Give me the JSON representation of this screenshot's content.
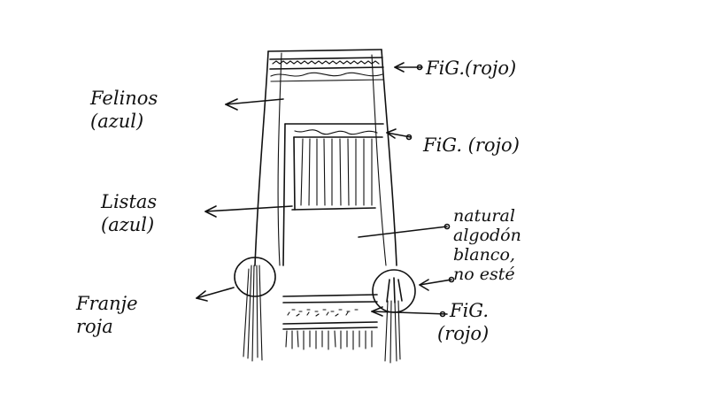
{
  "labels": {
    "felinos": {
      "line1": "Felinos",
      "line2": "(azul)"
    },
    "fig_top": "FiG.(rojo)",
    "fig_mid": "FiG. (rojo)",
    "listas": {
      "line1": "Listas",
      "line2": "(azul)"
    },
    "natural": {
      "line1": "natural",
      "line2": "algodón",
      "line3": "blanco,",
      "line4": "no esté"
    },
    "franje": {
      "line1": "Franje",
      "line2": "roja"
    },
    "fig_bottom": {
      "line1": "FiG.",
      "line2": "(rojo)"
    }
  }
}
